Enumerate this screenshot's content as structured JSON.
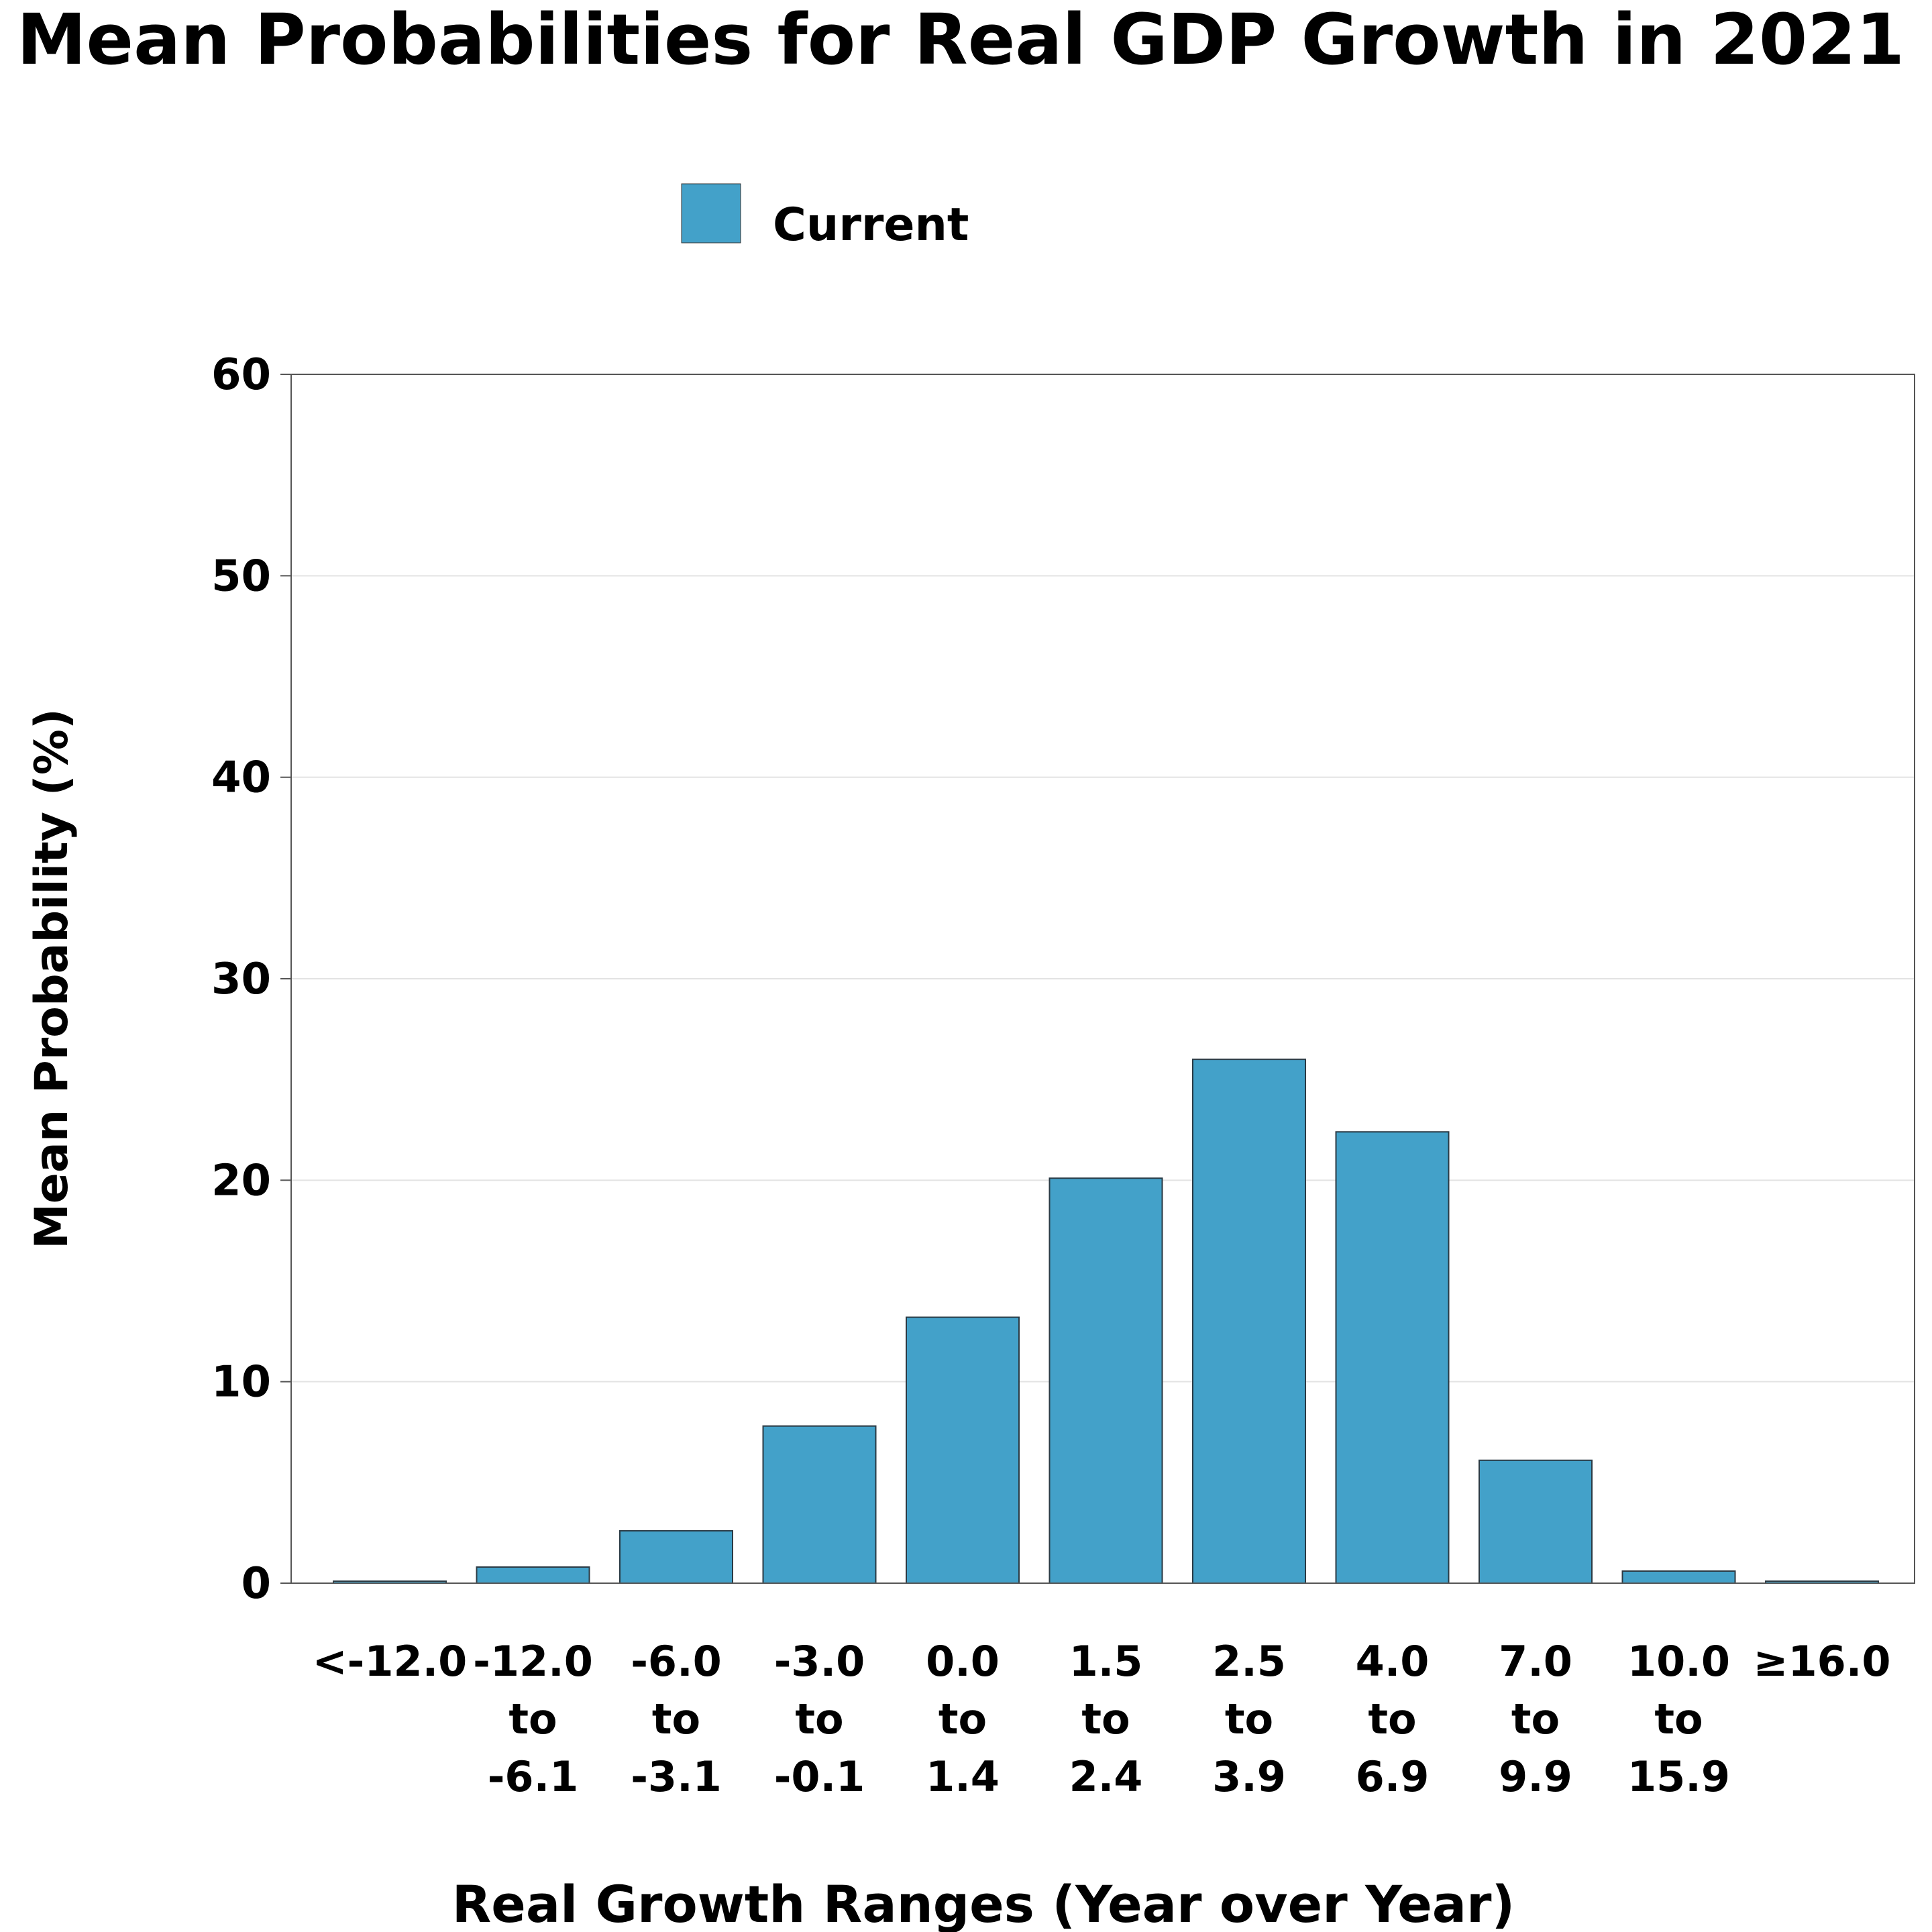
{
  "chart_data": {
    "type": "bar",
    "title": "Mean Probabilities for Real GDP Growth in 2021",
    "xlabel": "Real Growth Ranges (Year over Year)",
    "ylabel": "Mean Probability (%)",
    "ylim": [
      0,
      60
    ],
    "yticks": [
      "0",
      "10",
      "20",
      "30",
      "40",
      "50",
      "60"
    ],
    "grid": "horizontal",
    "legend_position": "top-center",
    "categories": [
      [
        "<-12.0"
      ],
      [
        "-12.0",
        "to",
        "-6.1"
      ],
      [
        "-6.0",
        "to",
        "-3.1"
      ],
      [
        "-3.0",
        "to",
        "-0.1"
      ],
      [
        "0.0",
        "to",
        "1.4"
      ],
      [
        "1.5",
        "to",
        "2.4"
      ],
      [
        "2.5",
        "to",
        "3.9"
      ],
      [
        "4.0",
        "to",
        "6.9"
      ],
      [
        "7.0",
        "to",
        "9.9"
      ],
      [
        "10.0",
        "to",
        "15.9"
      ],
      [
        "≥16.0"
      ]
    ],
    "series": [
      {
        "name": "Current",
        "color": "#43a1c9",
        "values": [
          0.1,
          0.8,
          2.6,
          7.8,
          13.2,
          20.1,
          26.0,
          22.4,
          6.1,
          0.6,
          0.1
        ]
      }
    ]
  }
}
